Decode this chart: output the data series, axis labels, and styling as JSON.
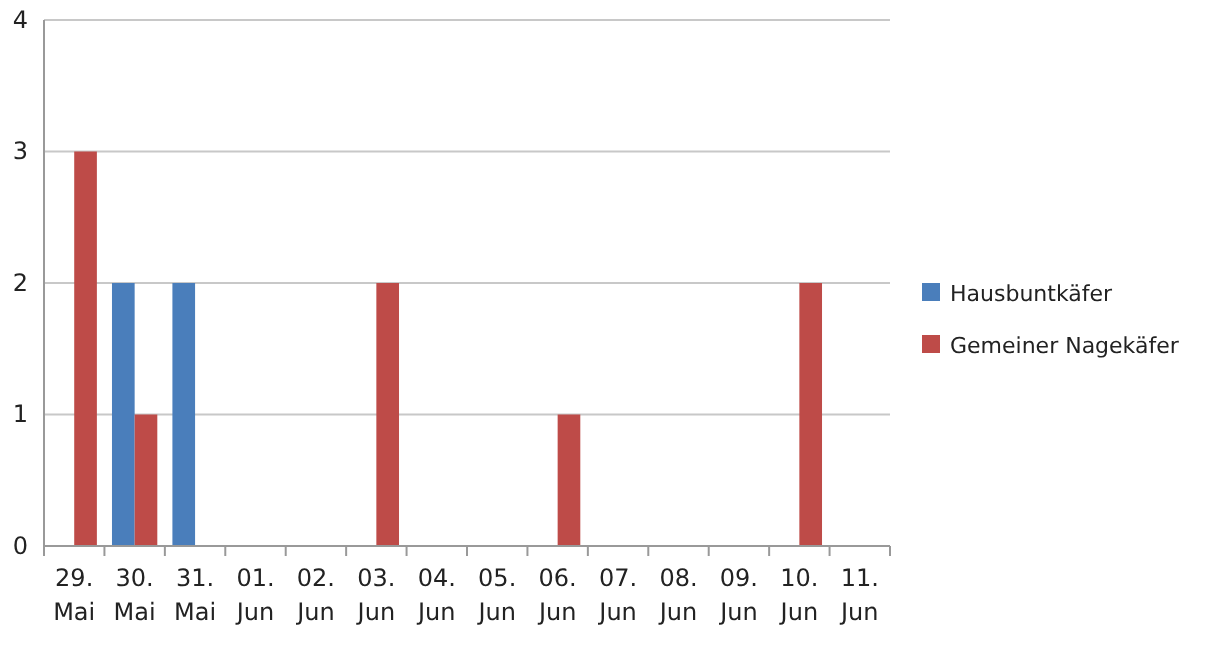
{
  "chart_data": {
    "type": "bar",
    "categories": [
      "29. Mai",
      "30. Mai",
      "31. Mai",
      "01. Jun",
      "02. Jun",
      "03. Jun",
      "04. Jun",
      "05. Jun",
      "06. Jun",
      "07. Jun",
      "08. Jun",
      "09. Jun",
      "10. Jun",
      "11. Jun"
    ],
    "series": [
      {
        "name": "Hausbuntkäfer",
        "color": "#4a7ebb",
        "values": [
          0,
          2,
          2,
          0,
          0,
          0,
          0,
          0,
          0,
          0,
          0,
          0,
          0,
          0
        ]
      },
      {
        "name": "Gemeiner Nagekäfer",
        "color": "#be4b48",
        "values": [
          3,
          1,
          0,
          0,
          0,
          2,
          0,
          0,
          1,
          0,
          0,
          0,
          2,
          0
        ]
      }
    ],
    "ylim": [
      0,
      4
    ],
    "yticks": [
      0,
      1,
      2,
      3,
      4
    ],
    "grid": "y",
    "legend": "right"
  }
}
